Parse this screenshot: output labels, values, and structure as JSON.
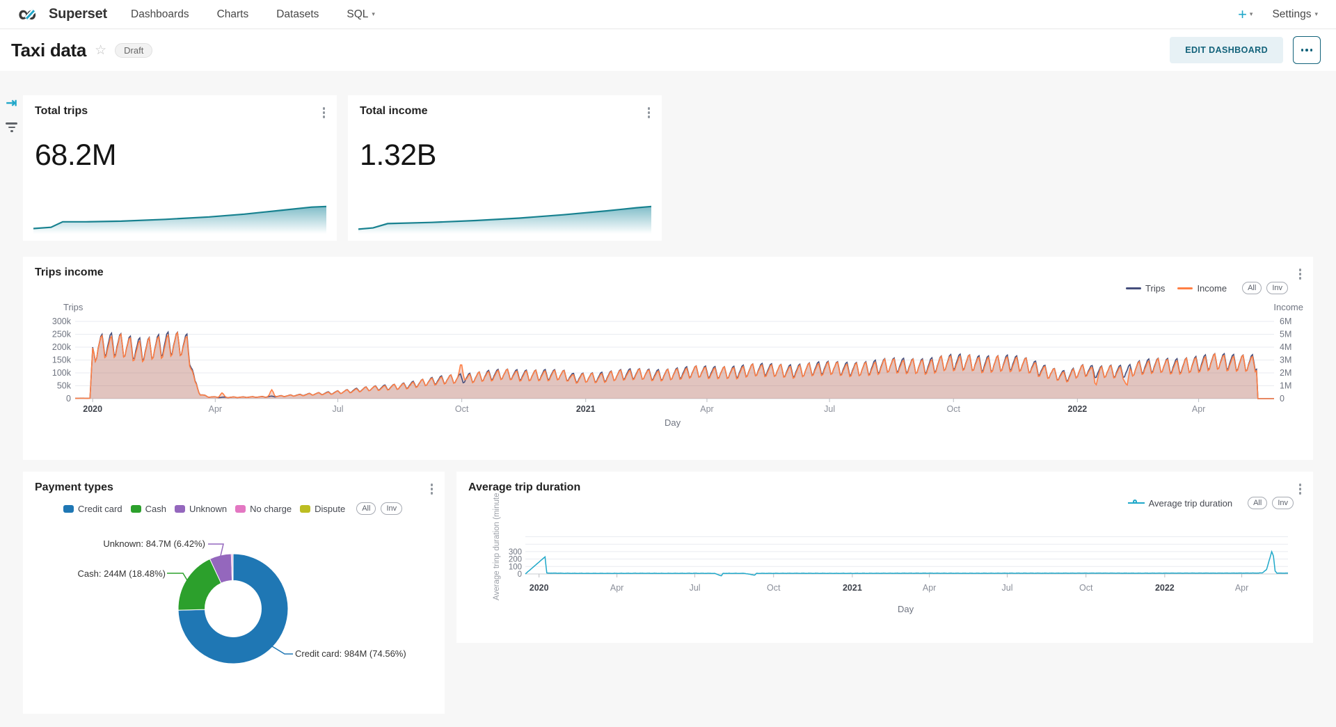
{
  "nav": {
    "brand": "Superset",
    "items": [
      "Dashboards",
      "Charts",
      "Datasets",
      "SQL"
    ],
    "plus": "+",
    "settings": "Settings"
  },
  "header": {
    "title": "Taxi data",
    "badge": "Draft",
    "edit_button": "EDIT DASHBOARD",
    "accent_color": "#20A7C9"
  },
  "chart_data": [
    {
      "type": "area",
      "subtype": "big_number_with_trendline",
      "title": "Total trips",
      "big_number": "68.2M",
      "line_color": "#17818F",
      "trend_norm_points": [
        [
          0,
          0.08
        ],
        [
          0.06,
          0.12
        ],
        [
          0.1,
          0.3
        ],
        [
          0.18,
          0.3
        ],
        [
          0.3,
          0.32
        ],
        [
          0.45,
          0.38
        ],
        [
          0.6,
          0.46
        ],
        [
          0.72,
          0.55
        ],
        [
          0.85,
          0.68
        ],
        [
          0.95,
          0.78
        ],
        [
          1,
          0.8
        ]
      ]
    },
    {
      "type": "area",
      "subtype": "big_number_with_trendline",
      "title": "Total income",
      "big_number": "1.32B",
      "line_color": "#17818F",
      "trend_norm_points": [
        [
          0,
          0.06
        ],
        [
          0.05,
          0.1
        ],
        [
          0.1,
          0.24
        ],
        [
          0.25,
          0.28
        ],
        [
          0.4,
          0.34
        ],
        [
          0.55,
          0.42
        ],
        [
          0.7,
          0.53
        ],
        [
          0.85,
          0.66
        ],
        [
          0.95,
          0.76
        ],
        [
          1,
          0.8
        ]
      ]
    },
    {
      "type": "line",
      "title": "Trips income",
      "xlabel": "Day",
      "legend_pills": [
        "All",
        "Inv"
      ],
      "domain_days": [
        -13,
        877
      ],
      "x_ticks": [
        {
          "label": "2020",
          "day": 0,
          "bold": true
        },
        {
          "label": "Apr",
          "day": 91
        },
        {
          "label": "Jul",
          "day": 182
        },
        {
          "label": "Oct",
          "day": 274
        },
        {
          "label": "2021",
          "day": 366,
          "bold": true
        },
        {
          "label": "Apr",
          "day": 456
        },
        {
          "label": "Jul",
          "day": 547
        },
        {
          "label": "Oct",
          "day": 639
        },
        {
          "label": "2022",
          "day": 731,
          "bold": true
        },
        {
          "label": "Apr",
          "day": 821
        }
      ],
      "y_left": {
        "title": "Trips",
        "max": 300000,
        "ticks": [
          "300k",
          "250k",
          "200k",
          "150k",
          "100k",
          "50k",
          "0"
        ]
      },
      "y_right": {
        "title": "Income",
        "max": 6000000,
        "ticks": [
          "6M",
          "5M",
          "4M",
          "3M",
          "2M",
          "1M",
          "0"
        ]
      },
      "series": [
        {
          "name": "Trips",
          "color": "#454E7C",
          "axis": "left",
          "keypoints_day_value": [
            [
              -13,
              1500
            ],
            [
              -2,
              1500
            ],
            [
              0,
              165000
            ],
            [
              4,
              200000
            ],
            [
              20,
              206000
            ],
            [
              40,
              200000
            ],
            [
              55,
              208000
            ],
            [
              70,
              205000
            ],
            [
              73,
              150000
            ],
            [
              76,
              60000
            ],
            [
              80,
              18000
            ],
            [
              85,
              8000
            ],
            [
              95,
              5000
            ],
            [
              110,
              5500
            ],
            [
              125,
              7000
            ],
            [
              140,
              10000
            ],
            [
              155,
              14000
            ],
            [
              170,
              20000
            ],
            [
              182,
              26000
            ],
            [
              196,
              33000
            ],
            [
              210,
              40000
            ],
            [
              225,
              48000
            ],
            [
              240,
              58000
            ],
            [
              255,
              68000
            ],
            [
              268,
              78000
            ],
            [
              274,
              82000
            ],
            [
              290,
              88000
            ],
            [
              305,
              92000
            ],
            [
              320,
              94000
            ],
            [
              335,
              95000
            ],
            [
              350,
              88000
            ],
            [
              358,
              78000
            ],
            [
              366,
              84000
            ],
            [
              380,
              88000
            ],
            [
              395,
              92000
            ],
            [
              410,
              95000
            ],
            [
              425,
              97000
            ],
            [
              440,
              100000
            ],
            [
              456,
              103000
            ],
            [
              470,
              106000
            ],
            [
              485,
              108000
            ],
            [
              500,
              110000
            ],
            [
              515,
              112000
            ],
            [
              530,
              114000
            ],
            [
              547,
              116000
            ],
            [
              562,
              119000
            ],
            [
              578,
              122000
            ],
            [
              593,
              126000
            ],
            [
              608,
              130000
            ],
            [
              623,
              134000
            ],
            [
              639,
              138000
            ],
            [
              654,
              140000
            ],
            [
              665,
              142000
            ],
            [
              680,
              138000
            ],
            [
              690,
              130000
            ],
            [
              700,
              120000
            ],
            [
              710,
              105000
            ],
            [
              718,
              95000
            ],
            [
              724,
              88000
            ],
            [
              731,
              102000
            ],
            [
              738,
              108000
            ],
            [
              745,
              100000
            ],
            [
              752,
              108000
            ],
            [
              760,
              112000
            ],
            [
              768,
              108000
            ],
            [
              775,
              118000
            ],
            [
              785,
              124000
            ],
            [
              795,
              128000
            ],
            [
              805,
              132000
            ],
            [
              815,
              136000
            ],
            [
              825,
              138000
            ],
            [
              835,
              140000
            ],
            [
              845,
              142000
            ],
            [
              855,
              144000
            ],
            [
              863,
              146000
            ],
            [
              864,
              146000
            ],
            [
              865,
              0
            ],
            [
              877,
              0
            ]
          ],
          "weekly_oscillation": 0.21
        },
        {
          "name": "Income",
          "color": "#FF7F44",
          "axis": "right",
          "derived_from": "Trips",
          "scale_factor": 19.4,
          "spikes_day_amount": [
            [
              96,
              350000
            ],
            [
              133,
              500000
            ],
            [
              274,
              1100000
            ],
            [
              745,
              -500000
            ],
            [
              768,
              -1100000
            ]
          ]
        }
      ]
    },
    {
      "type": "pie",
      "subtype": "donut",
      "title": "Payment types",
      "legend_pills": [
        "All",
        "Inv"
      ],
      "slices": [
        {
          "label": "Credit card",
          "value": "984M",
          "percent": 74.56,
          "color": "#1f77b4"
        },
        {
          "label": "Cash",
          "value": "244M",
          "percent": 18.48,
          "color": "#2ca02c"
        },
        {
          "label": "Unknown",
          "value": "84.7M",
          "percent": 6.42,
          "color": "#9467bd"
        },
        {
          "label": "No charge",
          "percent": 0.4,
          "color": "#e377c2"
        },
        {
          "label": "Dispute",
          "percent": 0.14,
          "color": "#bcbd22"
        }
      ],
      "callouts": [
        {
          "text": "Unknown: 84.7M (6.42%)"
        },
        {
          "text": "Cash: 244M (18.48%)"
        },
        {
          "text": "Credit card: 984M (74.56%)"
        }
      ]
    },
    {
      "type": "line",
      "title": "Average trip duration",
      "xlabel": "Day",
      "ylabel": "Average trinp duration (minute",
      "legend_pills": [
        "All",
        "Inv"
      ],
      "domain_days": [
        -16,
        875
      ],
      "x_ticks": [
        {
          "label": "2020",
          "day": 0,
          "bold": true
        },
        {
          "label": "Apr",
          "day": 91
        },
        {
          "label": "Jul",
          "day": 182
        },
        {
          "label": "Oct",
          "day": 274
        },
        {
          "label": "2021",
          "day": 366,
          "bold": true
        },
        {
          "label": "Apr",
          "day": 456
        },
        {
          "label": "Jul",
          "day": 547
        },
        {
          "label": "Oct",
          "day": 639
        },
        {
          "label": "2022",
          "day": 731,
          "bold": true
        },
        {
          "label": "Apr",
          "day": 821
        }
      ],
      "y_ticks": [
        {
          "label": "300",
          "v": 300
        },
        {
          "label": "200",
          "v": 200
        },
        {
          "label": "100",
          "v": 100
        },
        {
          "label": "0",
          "v": 0
        }
      ],
      "series": [
        {
          "name": "Average trip duration",
          "color": "#1FA8C9",
          "keypoints_day_value": [
            [
              -16,
              0
            ],
            [
              7,
              230
            ],
            [
              9,
              12
            ],
            [
              30,
              9
            ],
            [
              60,
              8
            ],
            [
              90,
              8
            ],
            [
              120,
              9
            ],
            [
              150,
              8
            ],
            [
              180,
              9
            ],
            [
              205,
              8
            ],
            [
              213,
              -26
            ],
            [
              215,
              8
            ],
            [
              240,
              8
            ],
            [
              252,
              -16
            ],
            [
              254,
              8
            ],
            [
              300,
              9
            ],
            [
              350,
              8
            ],
            [
              400,
              9
            ],
            [
              450,
              10
            ],
            [
              500,
              9
            ],
            [
              550,
              10
            ],
            [
              600,
              10
            ],
            [
              650,
              11
            ],
            [
              700,
              10
            ],
            [
              750,
              11
            ],
            [
              800,
              11
            ],
            [
              840,
              12
            ],
            [
              845,
              14
            ],
            [
              850,
              60
            ],
            [
              853,
              180
            ],
            [
              856,
              300
            ],
            [
              858,
              240
            ],
            [
              860,
              40
            ],
            [
              862,
              12
            ],
            [
              875,
              10
            ]
          ]
        }
      ]
    }
  ]
}
